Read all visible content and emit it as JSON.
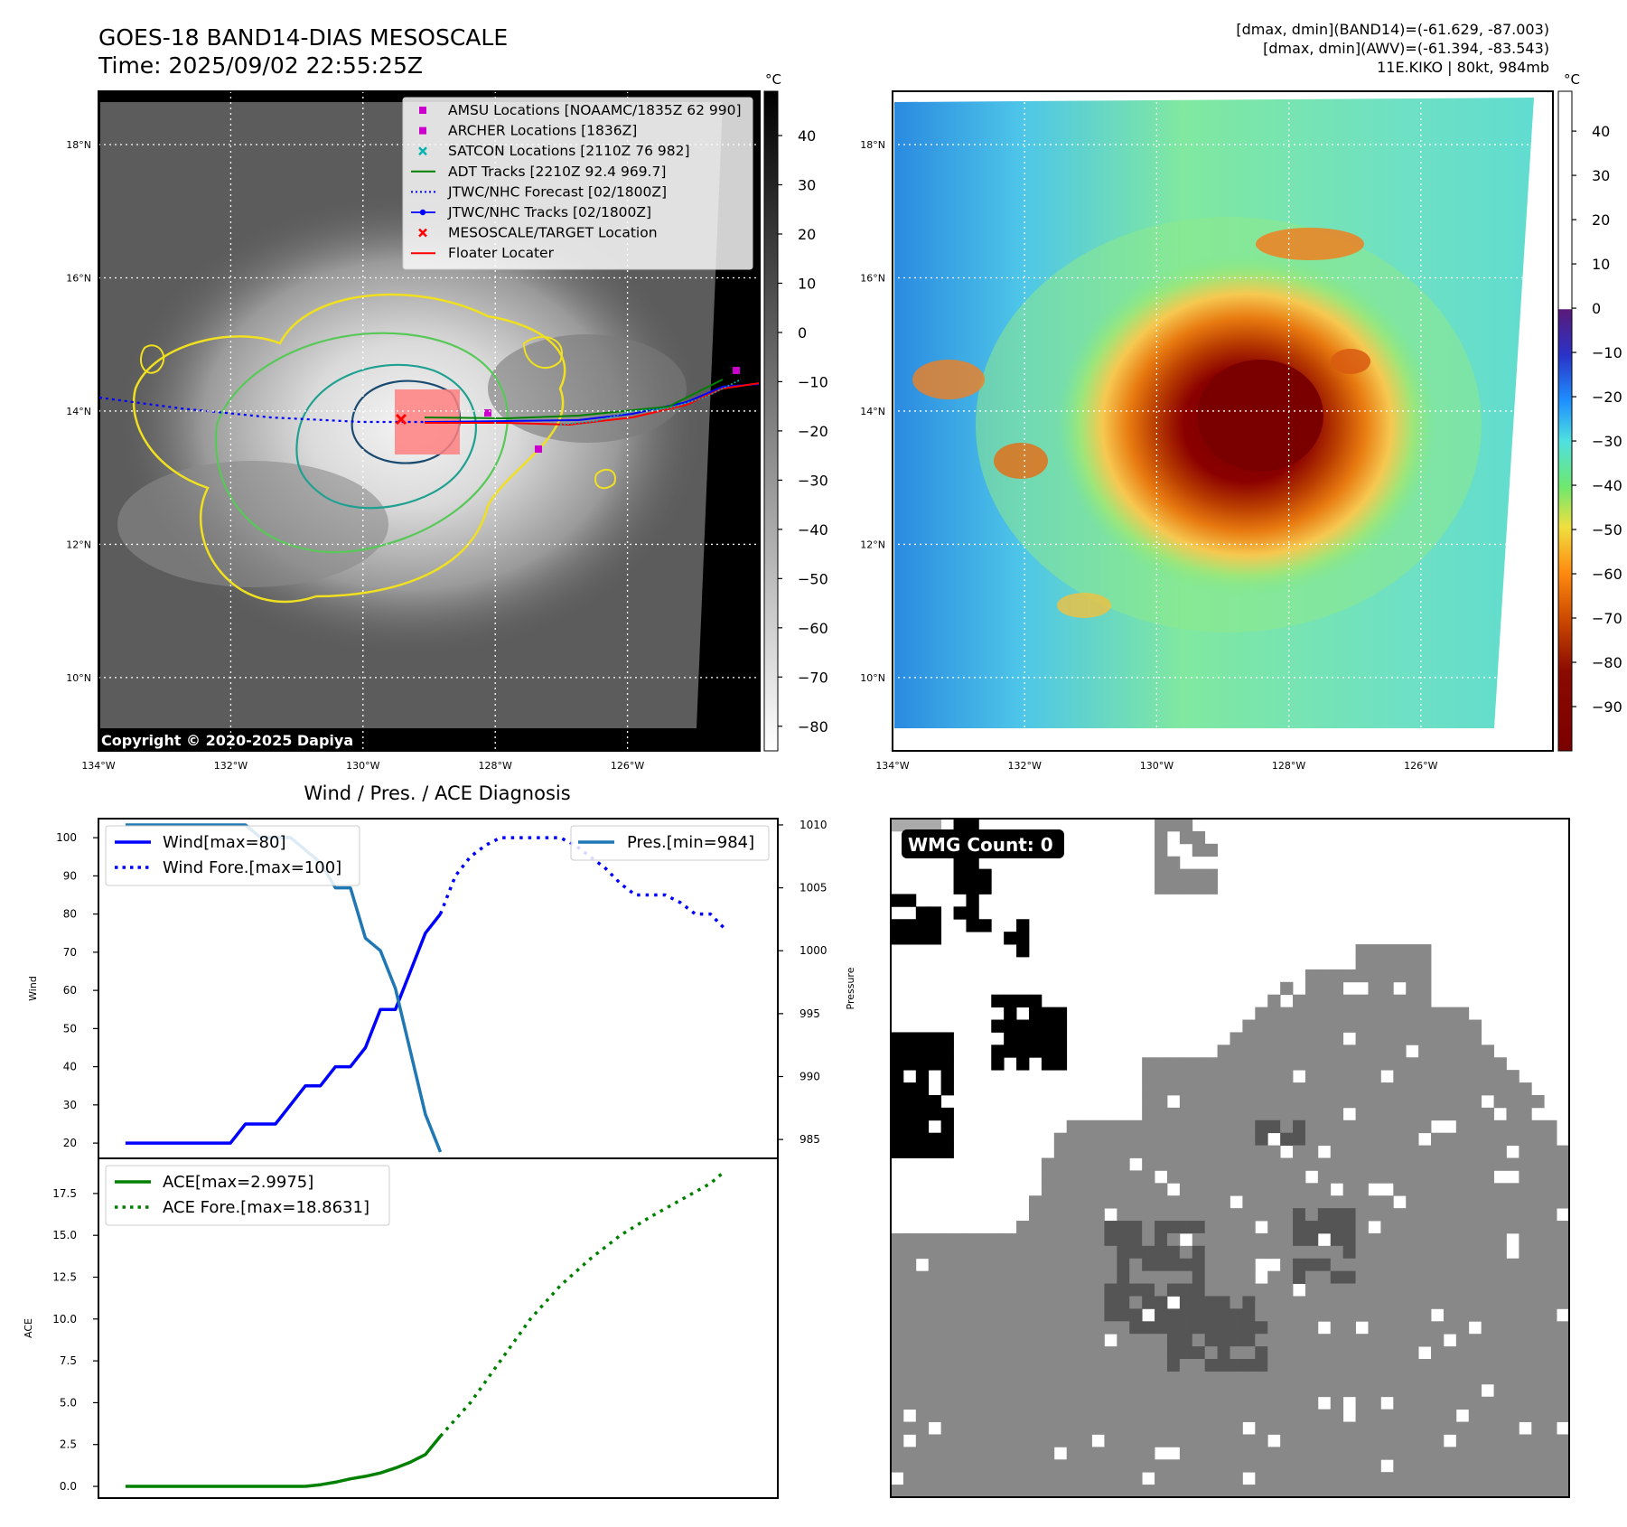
{
  "header": {
    "title": "GOES-18 BAND14-DIAS MESOSCALE",
    "time": "Time: 2025/09/02 22:55:25Z",
    "dmax_band14": "[dmax, dmin](BAND14)=(-61.629, -87.003)",
    "dmax_awv": "[dmax, dmin](AWV)=(-61.394, -83.543)",
    "storm_info": "11E.KIKO | 80kt, 984mb"
  },
  "copyright": "Copyright © 2020-2025 Dapiya",
  "maps": {
    "lat_labels": [
      "18°N",
      "16°N",
      "14°N",
      "12°N",
      "10°N"
    ],
    "lat_values": [
      18,
      16,
      14,
      12,
      10
    ],
    "lon_labels": [
      "134°W",
      "132°W",
      "130°W",
      "128°W",
      "126°W"
    ],
    "lon_values": [
      -134,
      -132,
      -130,
      -128,
      -126
    ],
    "extent": {
      "lon_min": -134,
      "lon_max": -124,
      "lat_min": 8.9,
      "lat_max": 18.8
    },
    "left_colorbar": {
      "unit": "°C",
      "ticks": [
        "40",
        "30",
        "20",
        "10",
        "0",
        "−10",
        "−20",
        "−30",
        "−40",
        "−50",
        "−60",
        "−70",
        "−80"
      ],
      "values": [
        40,
        30,
        20,
        10,
        0,
        -10,
        -20,
        -30,
        -40,
        -50,
        -60,
        -70,
        -80
      ],
      "range": [
        -85,
        49
      ]
    },
    "right_colorbar": {
      "unit": "°C",
      "ticks": [
        "40",
        "30",
        "20",
        "10",
        "0",
        "−10",
        "−20",
        "−30",
        "−40",
        "−50",
        "−60",
        "−70",
        "−80",
        "−90"
      ],
      "values": [
        40,
        30,
        20,
        10,
        0,
        -10,
        -20,
        -30,
        -40,
        -50,
        -60,
        -70,
        -80,
        -90
      ],
      "range": [
        -100,
        49
      ]
    },
    "legend": [
      {
        "label": "AMSU Locations [NOAAMC/1835Z 62 990]",
        "symbol": "square",
        "color": "#cc00cc"
      },
      {
        "label": "ARCHER Locations [1836Z]",
        "symbol": "square",
        "color": "#cc00cc"
      },
      {
        "label": "SATCON Locations [2110Z 76 982]",
        "symbol": "x",
        "color": "#00b3b3"
      },
      {
        "label": "ADT Tracks [2210Z 92.4 969.7]",
        "symbol": "line",
        "color": "#008000"
      },
      {
        "label": "JTWC/NHC Forecast [02/1800Z]",
        "symbol": "dotted",
        "color": "#0000ff"
      },
      {
        "label": "JTWC/NHC Tracks [02/1800Z]",
        "symbol": "line-dot",
        "color": "#0000ff"
      },
      {
        "label": "MESOSCALE/TARGET Location",
        "symbol": "x",
        "color": "#ff0000"
      },
      {
        "label": "Floater Locater",
        "symbol": "line",
        "color": "#ff0000"
      }
    ]
  },
  "diagnosis": {
    "title": "Wind / Pres. / ACE Diagnosis"
  },
  "wmg": {
    "label": "WMG Count: 0"
  },
  "chart_data": [
    {
      "type": "line",
      "title": "Wind / Pres. / ACE Diagnosis",
      "ylabel": "Wind",
      "ylim": [
        16,
        105
      ],
      "yticks": [
        20,
        30,
        40,
        50,
        60,
        70,
        80,
        90,
        100
      ],
      "x": [
        0,
        1,
        2,
        3,
        4,
        5,
        6,
        7,
        8,
        9,
        10,
        11,
        12,
        13,
        14,
        15,
        16,
        17,
        18,
        19,
        20,
        21,
        22,
        23,
        24,
        25,
        26,
        27,
        28,
        29,
        30,
        31,
        32,
        33,
        34,
        35,
        36,
        37,
        38,
        39,
        40
      ],
      "series": [
        {
          "name": "Wind[max=80]",
          "style": "solid",
          "color": "#0000ff",
          "x": [
            0,
            1,
            2,
            3,
            4,
            5,
            6,
            7,
            8,
            9,
            10,
            11,
            12,
            13,
            14,
            15,
            16,
            17,
            18,
            19,
            20,
            21
          ],
          "values": [
            20,
            20,
            20,
            20,
            20,
            20,
            20,
            20,
            25,
            25,
            25,
            30,
            35,
            35,
            40,
            40,
            45,
            55,
            55,
            65,
            75,
            80
          ]
        },
        {
          "name": "Wind Fore.[max=100]",
          "style": "dotted",
          "color": "#0000ff",
          "x": [
            21,
            22,
            23,
            24,
            25,
            26,
            27,
            28,
            29,
            30,
            31,
            32,
            33,
            34,
            35,
            36,
            37,
            38,
            39,
            40
          ],
          "values": [
            80,
            90,
            95,
            98,
            100,
            100,
            100,
            100,
            100,
            98,
            95,
            92,
            88,
            85,
            85,
            85,
            83,
            80,
            80,
            76
          ]
        },
        {
          "name": "Pres.[min=984]",
          "style": "solid",
          "color": "#1f77b4",
          "axis": "right",
          "x": [
            0,
            1,
            2,
            3,
            4,
            5,
            6,
            7,
            8,
            9,
            10,
            11,
            12,
            13,
            14,
            15,
            16,
            17,
            18,
            19,
            20,
            21
          ],
          "values": [
            1010,
            1010,
            1010,
            1010,
            1010,
            1010,
            1010,
            1010,
            1010,
            1009,
            1009,
            1009,
            1008,
            1007,
            1005,
            1005,
            1001,
            1000,
            997,
            992,
            987,
            984
          ]
        }
      ],
      "y2label": "Pressure",
      "y2lim": [
        983.5,
        1010.5
      ],
      "y2ticks": [
        985,
        990,
        995,
        1000,
        1005,
        1010
      ]
    },
    {
      "type": "line",
      "ylabel": "ACE",
      "ylim": [
        -0.7,
        19.6
      ],
      "yticks": [
        0.0,
        2.5,
        5.0,
        7.5,
        10.0,
        12.5,
        15.0,
        17.5
      ],
      "ytick_labels": [
        "0.0",
        "2.5",
        "5.0",
        "7.5",
        "10.0",
        "12.5",
        "15.0",
        "17.5"
      ],
      "series": [
        {
          "name": "ACE[max=2.9975]",
          "style": "solid",
          "color": "#008000",
          "x": [
            0,
            2,
            4,
            6,
            8,
            10,
            12,
            13,
            14,
            15,
            16,
            17,
            18,
            19,
            20,
            21
          ],
          "values": [
            0,
            0,
            0,
            0,
            0,
            0,
            0,
            0.1,
            0.25,
            0.45,
            0.6,
            0.8,
            1.1,
            1.45,
            1.9,
            3.0
          ]
        },
        {
          "name": "ACE Fore.[max=18.8631]",
          "style": "dotted",
          "color": "#008000",
          "x": [
            21,
            23,
            25,
            27,
            29,
            31,
            33,
            35,
            37,
            39,
            40
          ],
          "values": [
            3.0,
            5.0,
            7.5,
            10.0,
            12.0,
            13.6,
            15.0,
            16.1,
            17.1,
            18.1,
            18.86
          ]
        }
      ]
    }
  ]
}
